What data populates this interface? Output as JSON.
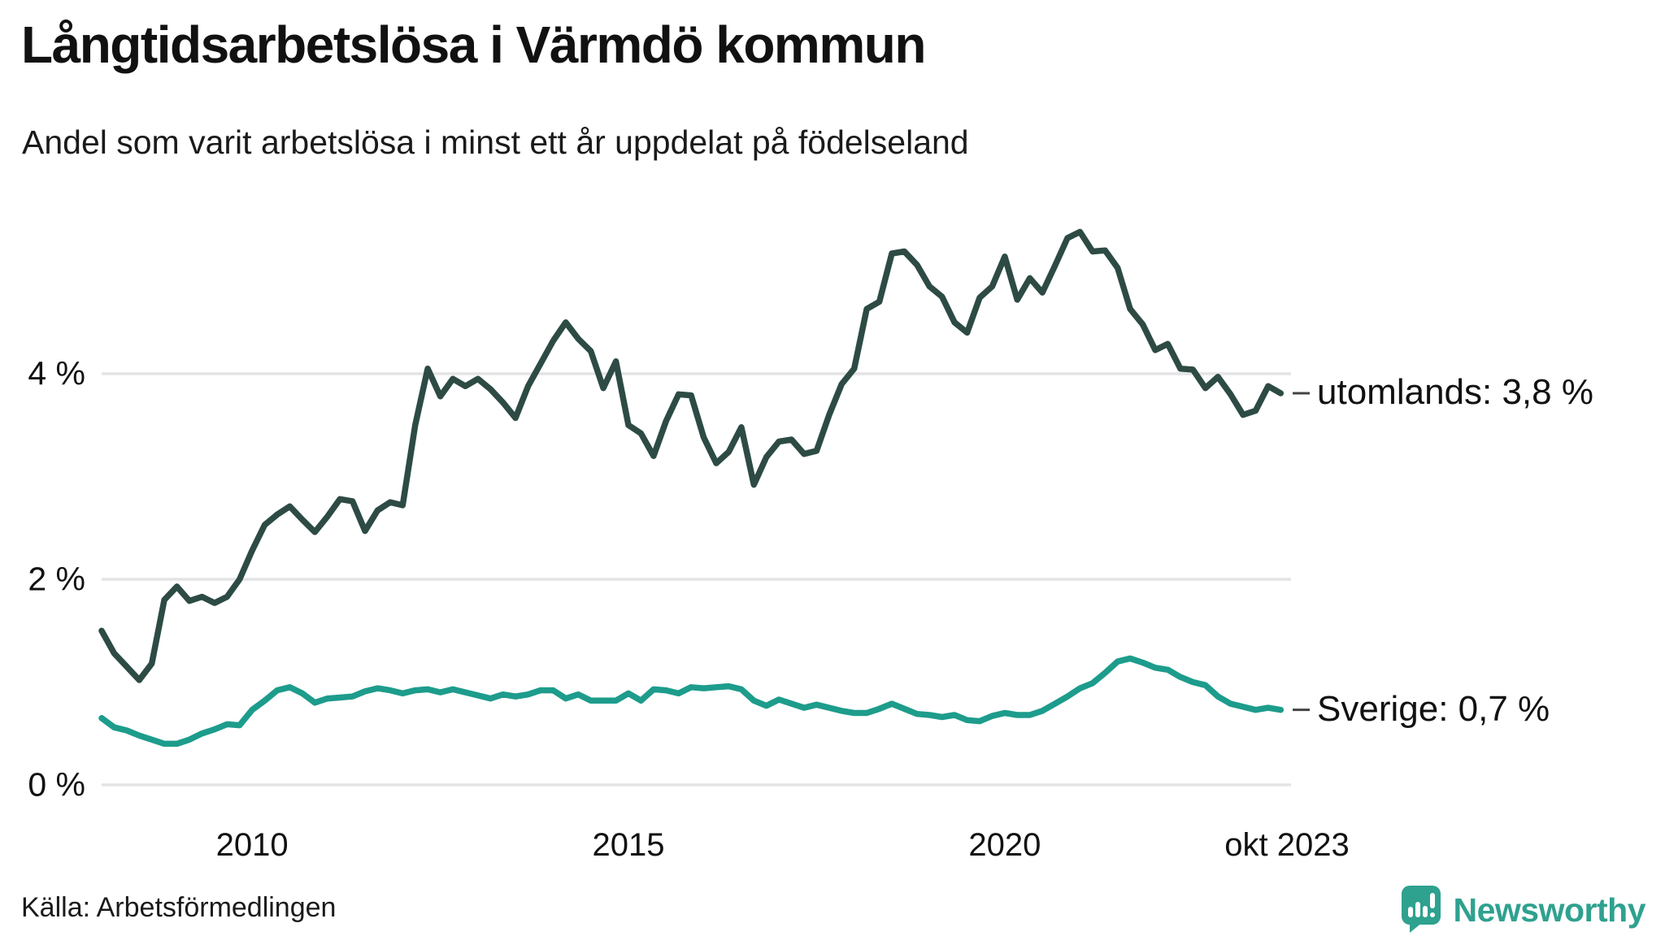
{
  "header": {
    "title": "Långtidsarbetslösa i Värmdö kommun",
    "subtitle": "Andel som varit arbetslösa i minst ett år uppdelat på födelseland"
  },
  "chart_data": {
    "type": "line",
    "title": "Långtidsarbetslösa i Värmdö kommun",
    "subtitle": "Andel som varit arbetslösa i minst ett år uppdelat på födelseland",
    "unit": "%",
    "x_start": "2008-01",
    "x_end": "2023-10",
    "sample_step_months": 2,
    "total_months": 189,
    "ylim": [
      0,
      5.6
    ],
    "grid": "horizontal",
    "y_ticks": [
      {
        "value": 0,
        "label": "0 %"
      },
      {
        "value": 2,
        "label": "2 %"
      },
      {
        "value": 4,
        "label": "4 %"
      }
    ],
    "x_ticks": [
      {
        "month_offset": 24,
        "label": "2010"
      },
      {
        "month_offset": 84,
        "label": "2015"
      },
      {
        "month_offset": 144,
        "label": "2020"
      },
      {
        "month_offset": 189,
        "label": "okt 2023"
      }
    ],
    "series": [
      {
        "name": "utomlands",
        "end_label": "utomlands: 3,8 %",
        "end_value_label": "3,8 %",
        "color": "#2d4b44",
        "values": [
          1.5,
          1.28,
          1.15,
          1.02,
          1.18,
          1.8,
          1.93,
          1.79,
          1.83,
          1.77,
          1.83,
          2.0,
          2.28,
          2.53,
          2.63,
          2.71,
          2.58,
          2.46,
          2.61,
          2.78,
          2.76,
          2.47,
          2.67,
          2.75,
          2.72,
          3.5,
          4.05,
          3.78,
          3.95,
          3.88,
          3.95,
          3.85,
          3.72,
          3.57,
          3.88,
          4.1,
          4.32,
          4.5,
          4.34,
          4.22,
          3.86,
          4.12,
          3.5,
          3.42,
          3.2,
          3.54,
          3.8,
          3.79,
          3.38,
          3.13,
          3.24,
          3.48,
          2.92,
          3.19,
          3.34,
          3.36,
          3.22,
          3.25,
          3.6,
          3.9,
          4.05,
          4.63,
          4.7,
          5.17,
          5.19,
          5.06,
          4.85,
          4.75,
          4.5,
          4.4,
          4.74,
          4.85,
          5.14,
          4.72,
          4.93,
          4.79,
          5.05,
          5.32,
          5.38,
          5.19,
          5.2,
          5.03,
          4.63,
          4.48,
          4.23,
          4.29,
          4.05,
          4.04,
          3.86,
          3.97,
          3.8,
          3.6,
          3.64,
          3.88,
          3.81
        ]
      },
      {
        "name": "Sverige",
        "end_label": "Sverige: 0,7 %",
        "end_value_label": "0,7 %",
        "color": "#1d9c8c",
        "values": [
          0.65,
          0.56,
          0.53,
          0.48,
          0.44,
          0.4,
          0.4,
          0.44,
          0.5,
          0.54,
          0.59,
          0.58,
          0.73,
          0.82,
          0.92,
          0.95,
          0.89,
          0.8,
          0.84,
          0.85,
          0.86,
          0.91,
          0.94,
          0.92,
          0.89,
          0.92,
          0.93,
          0.9,
          0.93,
          0.9,
          0.87,
          0.84,
          0.88,
          0.86,
          0.88,
          0.92,
          0.92,
          0.84,
          0.88,
          0.82,
          0.82,
          0.82,
          0.89,
          0.82,
          0.93,
          0.92,
          0.89,
          0.95,
          0.94,
          0.95,
          0.96,
          0.93,
          0.82,
          0.77,
          0.83,
          0.79,
          0.75,
          0.78,
          0.75,
          0.72,
          0.7,
          0.7,
          0.74,
          0.79,
          0.74,
          0.69,
          0.68,
          0.66,
          0.68,
          0.63,
          0.62,
          0.67,
          0.7,
          0.68,
          0.68,
          0.72,
          0.79,
          0.86,
          0.94,
          0.99,
          1.09,
          1.2,
          1.23,
          1.19,
          1.14,
          1.12,
          1.05,
          1.0,
          0.97,
          0.86,
          0.79,
          0.76,
          0.73,
          0.75,
          0.73
        ]
      }
    ],
    "grid_color": "#e4e4e7",
    "legend_position": "right-of-line-ends"
  },
  "footer": {
    "source": "Källa: Arbetsförmedlingen",
    "brand": "Newsworthy",
    "brand_color": "#2fa18f"
  }
}
